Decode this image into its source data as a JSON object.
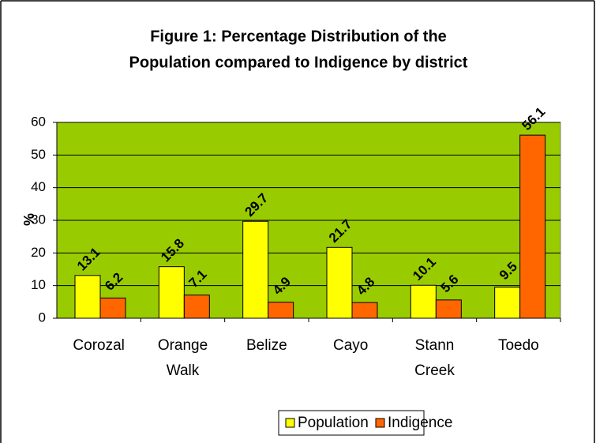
{
  "chart_data": {
    "type": "bar",
    "title": "Figure 1: Percentage Distribution of the",
    "subtitle": "Population compared to Indigence by district",
    "y_label": "%",
    "categories": [
      "Corozal",
      "Orange Walk",
      "Belize",
      "Cayo",
      "Stann Creek",
      "Toedo"
    ],
    "series": [
      {
        "name": "Population",
        "color": "#ffff00",
        "values": [
          13.1,
          15.8,
          29.7,
          21.7,
          10.1,
          9.5
        ]
      },
      {
        "name": "Indigence",
        "color": "#ff6600",
        "values": [
          6.2,
          7.1,
          4.9,
          4.8,
          5.6,
          56.1
        ]
      }
    ],
    "ylim": [
      0,
      60
    ],
    "yticks": [
      0,
      10,
      20,
      30,
      40,
      50,
      60
    ],
    "grid": true,
    "plot_background": "#99cc00",
    "legend": "bottom"
  }
}
